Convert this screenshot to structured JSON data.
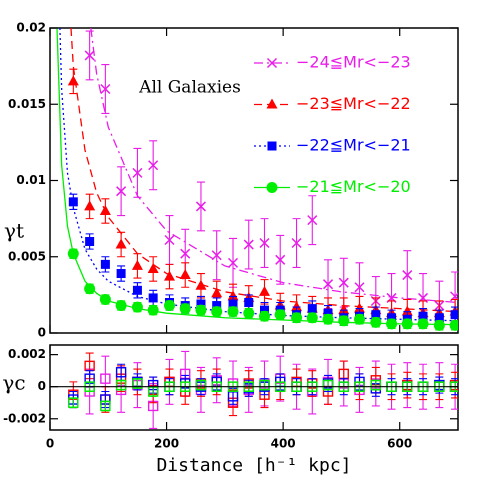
{
  "chart_data": [
    {
      "type": "scatter",
      "annotation": "All Galaxies",
      "ylabel": "γt",
      "x": [
        40,
        68,
        95,
        122,
        150,
        177,
        205,
        232,
        259,
        286,
        314,
        341,
        368,
        395,
        423,
        450,
        477,
        504,
        531,
        559,
        586,
        613,
        640,
        668,
        695
      ],
      "xlim": [
        0,
        700
      ],
      "ylim": [
        0,
        0.02
      ],
      "yticks": [
        0,
        0.005,
        0.01,
        0.015,
        0.02
      ],
      "series": [
        {
          "name": "−24≦Mr<−23",
          "color": "#e81ee8",
          "marker": "x",
          "linestyle": "dashdot",
          "error": 0.0016,
          "values": [
            null,
            0.0182,
            0.016,
            0.0093,
            0.0105,
            0.011,
            0.0061,
            0.0052,
            0.0083,
            0.0051,
            0.0046,
            0.0058,
            0.0059,
            0.0048,
            0.0059,
            0.0074,
            0.0032,
            0.0033,
            0.003,
            0.0021,
            0.0023,
            0.0038,
            0.0023,
            0.0018,
            0.0024
          ],
          "fit_x": [
            70,
            80,
            100,
            150,
            200,
            300,
            400,
            500,
            600,
            700
          ],
          "fit_values": [
            0.02,
            0.017,
            0.0135,
            0.009,
            0.0067,
            0.0044,
            0.0033,
            0.0027,
            0.0023,
            0.002
          ]
        },
        {
          "name": "−23≦Mr<−22",
          "color": "#ff0000",
          "marker": "triangle",
          "linestyle": "dashed",
          "error": 0.0008,
          "values": [
            0.0165,
            0.0083,
            0.008,
            0.0058,
            0.0044,
            0.0042,
            0.0037,
            0.0038,
            0.0031,
            0.0026,
            0.0024,
            0.0023,
            0.0027,
            0.0018,
            0.0017,
            0.0016,
            0.0015,
            0.0015,
            0.0016,
            0.0015,
            0.0013,
            0.0014,
            0.0013,
            0.0013,
            0.0014
          ],
          "fit_x": [
            36,
            40,
            60,
            80,
            100,
            150,
            200,
            300,
            400,
            500,
            600,
            700
          ],
          "fit_values": [
            0.02,
            0.0175,
            0.012,
            0.0092,
            0.0076,
            0.0052,
            0.0039,
            0.0027,
            0.0021,
            0.0018,
            0.0016,
            0.0014
          ]
        },
        {
          "name": "−22≦Mr<−21",
          "color": "#0000ff",
          "marker": "square",
          "linestyle": "dotted",
          "error": 0.0005,
          "values": [
            0.0086,
            0.006,
            0.0045,
            0.0039,
            0.0028,
            0.0023,
            0.002,
            0.0018,
            0.0019,
            0.0018,
            0.0019,
            0.002,
            0.0015,
            0.0015,
            0.0012,
            0.0016,
            0.0013,
            0.001,
            0.0011,
            0.0012,
            0.001,
            0.0009,
            0.0011,
            0.001,
            0.0012
          ],
          "fit_x": [
            17,
            20,
            30,
            40,
            60,
            80,
            100,
            150,
            200,
            300,
            400,
            500,
            600,
            700
          ],
          "fit_values": [
            0.02,
            0.016,
            0.0105,
            0.0082,
            0.0055,
            0.0042,
            0.0034,
            0.0024,
            0.0019,
            0.0014,
            0.00115,
            0.001,
            0.0009,
            0.0008
          ]
        },
        {
          "name": "−21≦Mr<−20",
          "color": "#00ee00",
          "marker": "circle",
          "linestyle": "solid",
          "error": 0.0003,
          "values": [
            0.0052,
            0.0029,
            0.0022,
            0.0018,
            0.0017,
            0.0015,
            0.0018,
            0.0016,
            0.0015,
            0.0014,
            0.0014,
            0.0013,
            0.0011,
            0.0012,
            0.001,
            0.001,
            0.0009,
            0.0008,
            0.0009,
            0.0007,
            0.0006,
            0.0006,
            0.0006,
            0.0005,
            0.0005
          ],
          "fit_x": [
            12,
            20,
            30,
            40,
            60,
            80,
            100,
            150,
            200,
            300,
            400,
            500,
            600,
            700
          ],
          "fit_values": [
            0.02,
            0.011,
            0.007,
            0.0052,
            0.0034,
            0.0026,
            0.0021,
            0.0016,
            0.0013,
            0.001,
            0.00085,
            0.0007,
            0.0006,
            0.00055
          ]
        }
      ]
    },
    {
      "type": "scatter",
      "ylabel": "γc",
      "xlabel": "Distance [h⁻¹ kpc]",
      "xticks": [
        0,
        200,
        400,
        600
      ],
      "ylim": [
        -0.0027,
        0.0026
      ],
      "yticks": [
        0.002,
        0,
        -0.002
      ],
      "series": [
        {
          "color": "#e81ee8",
          "error": 0.0014,
          "values": [
            null,
            -0.0003,
            0.0005,
            -0.0002,
            0.0001,
            -0.0012,
            0.0003,
            0.0008,
            -0.0002,
            0.0004,
            0.0002,
            -0.0002,
            0.0002,
            0.0005,
            0,
            -0.0003,
            0.0003,
            0.0002,
            -0.0002,
            0.0002,
            0,
            0.0001,
            0,
            0.0001,
            0
          ]
        },
        {
          "color": "#ff0000",
          "error": 0.0008,
          "values": [
            -0.0005,
            0.0013,
            -0.0008,
            0.0005,
            0.0003,
            -0.0002,
            0.0003,
            -0.0003,
            0.0002,
            0.0003,
            -0.001,
            0.0002,
            -0.0005,
            0,
            0.0003,
            0.0002,
            -0.0003,
            0.0008,
            0,
            0.0004,
            0,
            0.0001,
            0,
            0,
            0.0001
          ]
        },
        {
          "color": "#0000ff",
          "error": 0.0005,
          "values": [
            -0.0008,
            0.0005,
            -0.0008,
            0.0009,
            0.0003,
            0.0001,
            0,
            0.0002,
            0,
            0.0003,
            -0.0006,
            -0.0001,
            0,
            0.0003,
            0,
            0,
            0.0002,
            0,
            0.0003,
            -0.0001,
            0,
            0,
            0,
            0.0001,
            0
          ]
        },
        {
          "color": "#00ee00",
          "error": 0.0003,
          "values": [
            -0.001,
            0,
            -0.0012,
            0.0001,
            0.0002,
            -0.0003,
            0,
            0,
            0.0001,
            0,
            0,
            0,
            0.0001,
            0,
            0,
            0,
            0.0001,
            0,
            0,
            0.0001,
            0,
            0,
            0,
            0,
            0
          ]
        }
      ]
    }
  ]
}
